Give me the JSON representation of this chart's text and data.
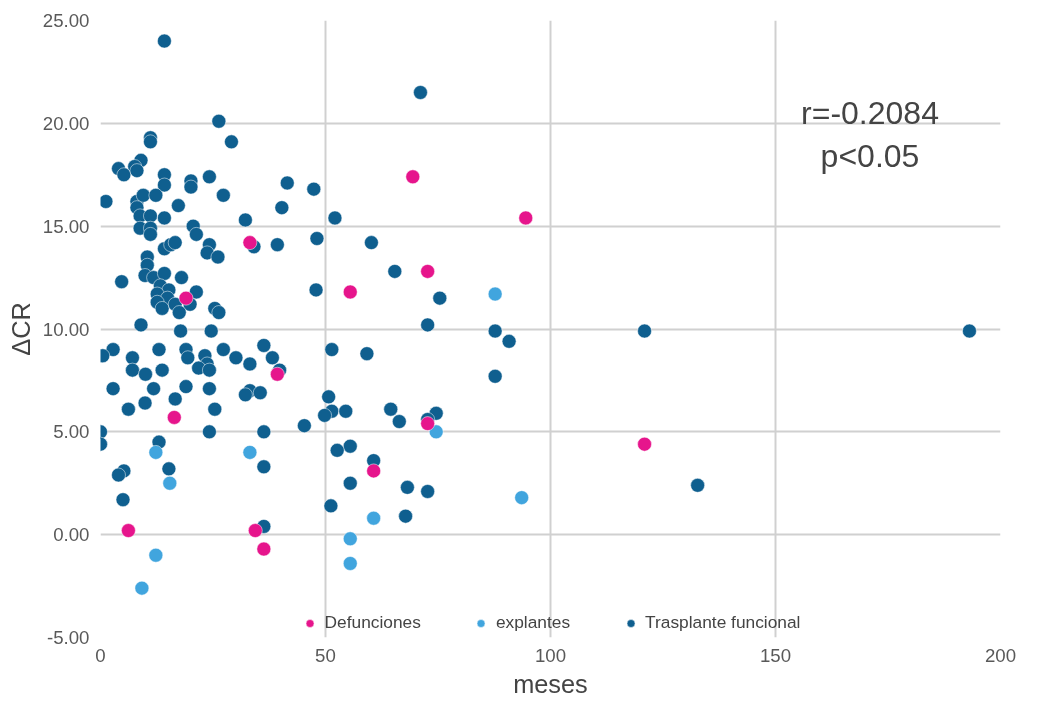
{
  "chart_data": {
    "type": "scatter",
    "xlabel": "meses",
    "ylabel": "ΔCR",
    "xlim": [
      0,
      200
    ],
    "ylim": [
      -5,
      25
    ],
    "xticks": [
      0,
      50,
      100,
      150,
      200
    ],
    "yticks": [
      {
        "value": -5,
        "label": "-5.00"
      },
      {
        "value": 0,
        "label": "0.00"
      },
      {
        "value": 5,
        "label": "5.00"
      },
      {
        "value": 10,
        "label": "10.00"
      },
      {
        "value": 15,
        "label": "15.00"
      },
      {
        "value": 20,
        "label": "20.00"
      },
      {
        "value": 25,
        "label": "25.00"
      }
    ],
    "grid": true,
    "legend": "bottom",
    "marker": "circle",
    "annotations": [
      "r=-0.2084\np<0.05"
    ],
    "series": [
      {
        "name": "Defunciones",
        "color": "#e6158c",
        "x": [
          6.2,
          16.4,
          33.2,
          39.3,
          55.5,
          60.7,
          69.4,
          72.7,
          72.7,
          94.5,
          120.9,
          34.4,
          36.3,
          19.0
        ],
        "values": [
          0.2,
          5.7,
          14.2,
          7.8,
          11.8,
          3.1,
          17.4,
          12.8,
          5.4,
          15.4,
          4.4,
          0.2,
          -0.7,
          11.5
        ]
      },
      {
        "name": "explantes",
        "color": "#41a5de",
        "x": [
          12.3,
          15.4,
          33.2,
          9.2,
          12.3,
          55.5,
          55.5,
          60.7,
          87.7,
          74.6,
          93.6
        ],
        "values": [
          4.0,
          2.5,
          4.0,
          -2.6,
          -1.0,
          -0.2,
          -1.4,
          0.8,
          11.7,
          5.0,
          1.8
        ]
      },
      {
        "name": "Trasplante funcional",
        "color": "#0f5f8f",
        "x": [
          14.2,
          71.1,
          26.3,
          11.1,
          11.1,
          29.1,
          9.0,
          7.6,
          4.0,
          5.2,
          8.1,
          14.2,
          14.2,
          20.1,
          20.1,
          24.2,
          41.5,
          47.4,
          27.3,
          1.2,
          8.1,
          9.5,
          12.3,
          17.3,
          8.1,
          40.3,
          52.1,
          8.8,
          11.1,
          14.2,
          32.2,
          8.8,
          11.1,
          20.6,
          21.3,
          11.1,
          48.1,
          60.2,
          14.2,
          15.6,
          16.6,
          24.2,
          23.7,
          26.1,
          34.1,
          39.3,
          10.4,
          10.4,
          9.9,
          65.4,
          4.7,
          11.8,
          14.2,
          18.0,
          13.3,
          15.2,
          12.6,
          14.9,
          21.3,
          47.9,
          75.4,
          12.6,
          13.7,
          16.6,
          19.9,
          25.4,
          26.3,
          17.5,
          9.0,
          72.7,
          87.7,
          90.8,
          120.9,
          193.1,
          17.8,
          24.6,
          36.3,
          27.3,
          19.0,
          13.0,
          2.8,
          51.4,
          59.2,
          0.5,
          7.1,
          19.4,
          23.2,
          30.1,
          38.2,
          33.2,
          23.7,
          7.1,
          13.7,
          21.8,
          24.2,
          39.8,
          10.0,
          87.7,
          2.8,
          11.8,
          19.0,
          24.2,
          33.2,
          35.5,
          32.2,
          50.7,
          9.9,
          16.6,
          6.2,
          25.4,
          64.5,
          51.4,
          54.5,
          74.6,
          49.8,
          66.4,
          72.7,
          45.3,
          24.2,
          36.3,
          13.0,
          55.5,
          52.6,
          0,
          0,
          60.7,
          15.2,
          36.3,
          5.2,
          4.0,
          55.5,
          68.2,
          72.7,
          132.7,
          5.0,
          51.2,
          67.8,
          36.3
        ],
        "values": [
          24.0,
          21.5,
          20.1,
          19.3,
          19.1,
          19.1,
          18.2,
          17.9,
          17.8,
          17.5,
          17.7,
          17.5,
          17.0,
          17.2,
          16.9,
          17.4,
          17.1,
          16.8,
          16.5,
          16.2,
          16.2,
          16.5,
          16.5,
          16.0,
          15.9,
          15.9,
          15.4,
          15.5,
          15.5,
          15.4,
          15.3,
          14.9,
          14.9,
          15.0,
          14.6,
          14.6,
          14.4,
          14.2,
          13.9,
          14.1,
          14.2,
          14.1,
          13.7,
          13.5,
          14.0,
          14.1,
          13.5,
          13.1,
          12.6,
          12.8,
          12.3,
          12.5,
          12.7,
          12.5,
          12.1,
          11.9,
          11.7,
          11.5,
          11.8,
          11.9,
          11.5,
          11.3,
          11.0,
          11.2,
          11.2,
          11.0,
          10.8,
          10.8,
          10.2,
          10.2,
          9.9,
          9.4,
          9.9,
          9.9,
          9.9,
          9.9,
          9.2,
          9.0,
          9.0,
          9.0,
          9.0,
          9.0,
          8.8,
          8.7,
          8.6,
          8.6,
          8.7,
          8.6,
          8.6,
          8.3,
          8.3,
          8.0,
          8.0,
          8.1,
          8.0,
          8.0,
          7.8,
          7.7,
          7.1,
          7.1,
          7.2,
          7.1,
          7.0,
          6.9,
          6.8,
          6.7,
          6.4,
          6.6,
          6.1,
          6.1,
          6.1,
          6.0,
          6.0,
          5.9,
          5.8,
          5.5,
          5.6,
          5.3,
          5.0,
          5.0,
          4.5,
          4.3,
          4.1,
          5.0,
          4.4,
          3.6,
          3.2,
          3.3,
          3.1,
          2.9,
          2.5,
          2.3,
          2.1,
          2.4,
          1.7,
          1.4,
          0.9,
          0.4
        ]
      }
    ]
  }
}
